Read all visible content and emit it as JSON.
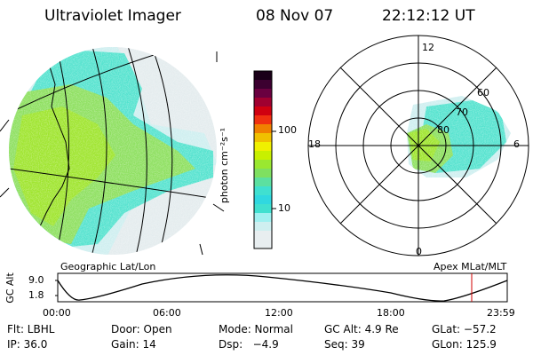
{
  "header": {
    "title": "Ultraviolet Imager",
    "date": "08 Nov 07",
    "time": "22:12:12 UT"
  },
  "left_panel": {
    "caption": "Geographic Lat/Lon"
  },
  "right_panel": {
    "caption": "Apex MLat/MLT",
    "mlt_labels": {
      "top": "12",
      "left": "18",
      "right": "6",
      "bottom": "0"
    },
    "mlat_labels": [
      "60",
      "70",
      "80"
    ]
  },
  "colorbar": {
    "unit_label": "photon cm⁻²s⁻¹",
    "ticks": [
      "100",
      "10"
    ],
    "scale": "log",
    "colors": [
      "#e8eef0",
      "#cfeff0",
      "#40e0d0",
      "#7fe060",
      "#c8f000",
      "#f0d000",
      "#f08000",
      "#c80000",
      "#600040",
      "#180018"
    ]
  },
  "altitude_plot": {
    "ylabel": "GC Alt",
    "yticks": [
      "9.0",
      "1.8"
    ],
    "xticks": [
      "00:00",
      "06:00",
      "12:00",
      "18:00",
      "23:59"
    ],
    "current_time_marker": "22:12:12",
    "marker_color": "#d00000"
  },
  "footer": {
    "row1": {
      "flt": "Flt: LBHL",
      "door": "Door: Open",
      "mode": "Mode: Normal",
      "gcalt": "GC Alt: 4.9 Re",
      "glat": "GLat: −57.2"
    },
    "row2": {
      "ip": "IP: 36.0",
      "gain": "Gain: 14",
      "dsp": "Dsp:   −4.9",
      "seq": "Seq: 39",
      "glon": "GLon: 125.9"
    }
  }
}
